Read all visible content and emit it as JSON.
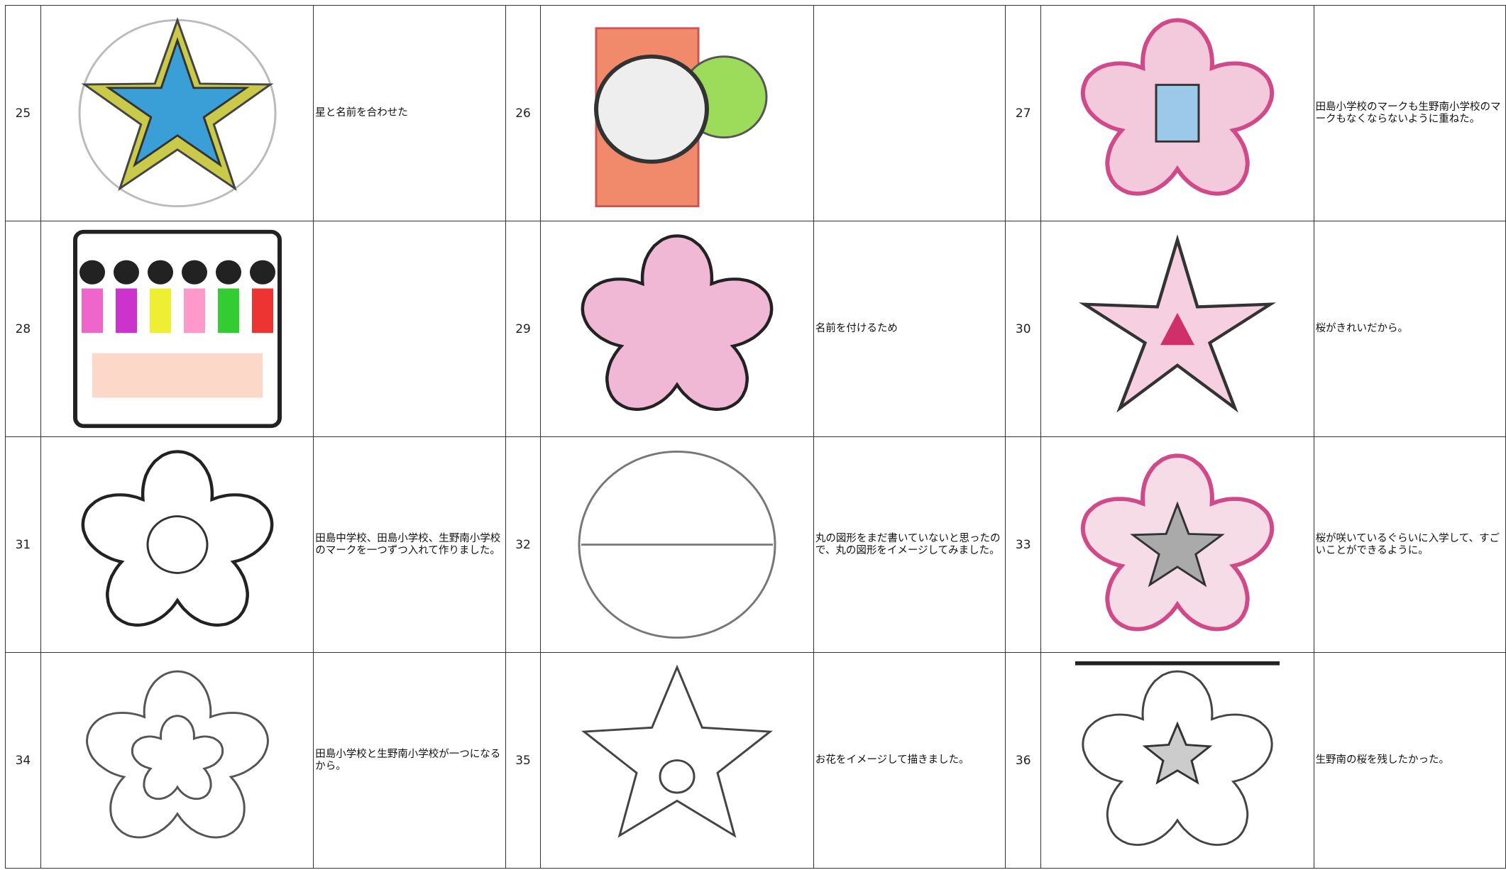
{
  "table": {
    "rows": [
      [
        {
          "number": 25,
          "comment": "星と名前を合わせた"
        },
        {
          "number": 26
        },
        {
          "number": 27,
          "comment": "田島小学校のマークも生野南小学校のマークもなくならないように重ねた。"
        }
      ],
      [
        {
          "number": 28
        },
        {
          "number": 29,
          "comment": "名前を付けるため"
        },
        {
          "number": 30,
          "comment": "桜がきれいだから。"
        }
      ],
      [
        {
          "number": 31,
          "comment": "田島中学校、田島小学校、生野南小学校のマークを一つずつ入れて作りました。"
        },
        {
          "number": 32,
          "comment": "丸の図形をまだ書いていないと思ったので、丸の図形をイメージしてみました。"
        },
        {
          "number": 33,
          "comment": "桜が咲いているぐらいに入学して、すごいことができるように。"
        }
      ],
      [
        {
          "number": 34,
          "comment": "田島小学校と生野南小学校が一つになるから。"
        },
        {
          "number": 35,
          "comment": "お花をイメージして描きました。"
        },
        {
          "number": 36,
          "comment": "生野南の桜を残したかった。"
        }
      ]
    ]
  }
}
